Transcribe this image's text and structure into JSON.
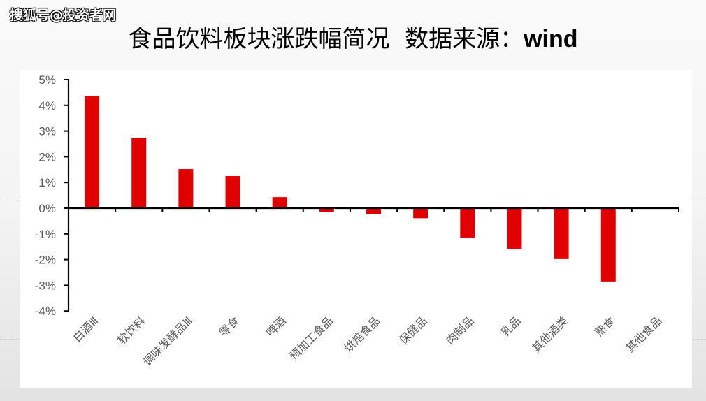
{
  "watermark": "搜狐号@投资者网",
  "title": {
    "main": "食品饮料板块涨跌幅简况",
    "source_label": "数据来源：",
    "source_name": "wind"
  },
  "colors": {
    "bar": "#e00000",
    "axis": "#000000",
    "tick_label": "#595959",
    "panel": "#ffffff"
  },
  "chart_data": {
    "type": "bar",
    "title": "食品饮料板块涨跌幅简况 数据来源：wind",
    "xlabel": "",
    "ylabel": "",
    "categories": [
      "白酒Ⅲ",
      "软饮料",
      "调味发酵品Ⅲ",
      "零食",
      "啤酒",
      "预加工食品",
      "烘焙食品",
      "保健品",
      "肉制品",
      "乳品",
      "其他酒类",
      "熟食",
      "其他食品"
    ],
    "values": [
      4.35,
      2.74,
      1.52,
      1.25,
      0.43,
      -0.16,
      -0.24,
      -0.39,
      -1.14,
      -1.58,
      -1.98,
      -2.85,
      0.0
    ],
    "unit": "%",
    "ylim": [
      -4,
      5
    ],
    "yticks": [
      "5%",
      "4%",
      "3%",
      "2%",
      "1%",
      "0%",
      "-1%",
      "-2%",
      "-3%",
      "-4%"
    ],
    "grid": false,
    "legend": null
  }
}
